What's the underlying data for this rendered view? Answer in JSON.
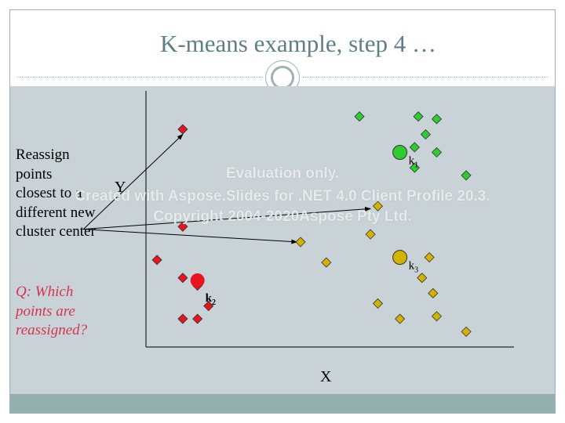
{
  "slide": {
    "title": "K-means example, step 4 …",
    "body_text": "Reassign\npoints\nclosest to a\ndifferent new\ncluster center",
    "question": "Q: Which\npoints are\nreassigned?"
  },
  "colors": {
    "background": "#c9d3d7",
    "title": "#5f7f86",
    "question": "#d3354f",
    "red_points": "#e8141e",
    "green_points": "#2ecc2e",
    "yellow_points": "#d4b300",
    "bottom_bar": "#93afaf"
  },
  "watermark": [
    "Evaluation only.",
    "Created with Aspose.Slides for .NET 4.0 Client Profile 20.3.",
    "Copyright 2004-2020Aspose Pty Ltd."
  ],
  "chart_data": {
    "type": "scatter",
    "xlabel": "X",
    "ylabel": "Y",
    "xlim": [
      0,
      100
    ],
    "ylim": [
      0,
      100
    ],
    "series": [
      {
        "color": "red",
        "points": [
          [
            10,
            85
          ],
          [
            10,
            47
          ],
          [
            3,
            34
          ],
          [
            10,
            27
          ],
          [
            14,
            24
          ],
          [
            17,
            16
          ],
          [
            10,
            11
          ],
          [
            14,
            11
          ]
        ]
      },
      {
        "color": "green",
        "points": [
          [
            58,
            90
          ],
          [
            74,
            90
          ],
          [
            79,
            89
          ],
          [
            76,
            83
          ],
          [
            73,
            78
          ],
          [
            79,
            76
          ],
          [
            73,
            70
          ],
          [
            87,
            67
          ]
        ]
      },
      {
        "color": "yellow",
        "points": [
          [
            63,
            55
          ],
          [
            61,
            44
          ],
          [
            42,
            41
          ],
          [
            49,
            33
          ],
          [
            77,
            35
          ],
          [
            75,
            27
          ],
          [
            78,
            21
          ],
          [
            63,
            17
          ],
          [
            69,
            11
          ],
          [
            79,
            12
          ],
          [
            87,
            6
          ]
        ]
      }
    ],
    "centers": [
      {
        "label": "k1",
        "sub": "1",
        "color": "green",
        "x": 69,
        "y": 76
      },
      {
        "label": "k2",
        "sub": "2",
        "color": "red",
        "x": 14,
        "y": 26
      },
      {
        "label": "k3",
        "sub": "3",
        "color": "yellow",
        "x": 69,
        "y": 35
      }
    ],
    "arrows": [
      {
        "from": [
          -17,
          46
        ],
        "to": [
          10,
          83
        ]
      },
      {
        "from": [
          -17,
          46
        ],
        "to": [
          61,
          54
        ]
      },
      {
        "from": [
          -17,
          46
        ],
        "to": [
          41,
          41
        ]
      }
    ]
  }
}
